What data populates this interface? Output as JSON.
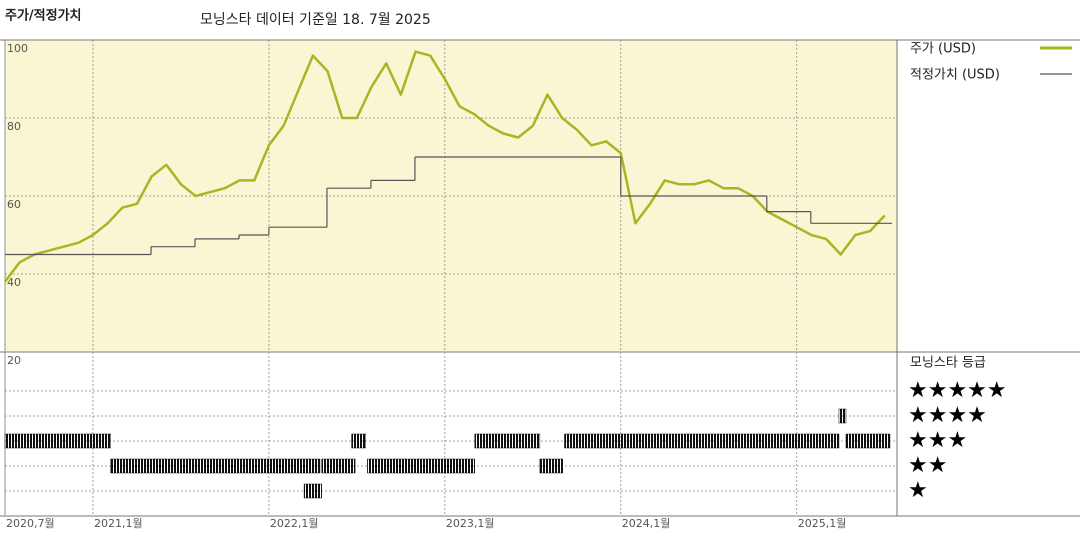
{
  "chart_data": {
    "type": "line",
    "title": "주가/적정가치",
    "subtitle": "모닝스타 데이터 기준일 18. 7월 2025",
    "x": [
      2020.5,
      2020.5833,
      2020.6667,
      2020.75,
      2020.8333,
      2020.9167,
      2021,
      2021.0833,
      2021.1667,
      2021.25,
      2021.3333,
      2021.4167,
      2021.5,
      2021.5833,
      2021.6667,
      2021.75,
      2021.8333,
      2021.9167,
      2022,
      2022.0833,
      2022.1667,
      2022.25,
      2022.3333,
      2022.4167,
      2022.5,
      2022.5833,
      2022.6667,
      2022.75,
      2022.8333,
      2022.9167,
      2023,
      2023.0833,
      2023.1667,
      2023.25,
      2023.3333,
      2023.4167,
      2023.5,
      2023.5833,
      2023.6667,
      2023.75,
      2023.8333,
      2023.9167,
      2024,
      2024.0833,
      2024.1667,
      2024.25,
      2024.3333,
      2024.4167,
      2024.5,
      2024.5833,
      2024.6667,
      2024.75,
      2024.8333,
      2024.9167,
      2025,
      2025.0833,
      2025.1667,
      2025.25,
      2025.3333,
      2025.4167,
      2025.5
    ],
    "xlim": [
      2020.5,
      2025.57
    ],
    "xticks": [
      {
        "value": 2020.5,
        "label": "2020,7월"
      },
      {
        "value": 2021,
        "label": "2021,1월"
      },
      {
        "value": 2022,
        "label": "2022,1월"
      },
      {
        "value": 2023,
        "label": "2023,1월"
      },
      {
        "value": 2024,
        "label": "2024,1월"
      },
      {
        "value": 2025,
        "label": "2025,1월"
      }
    ],
    "ylim": [
      20,
      100
    ],
    "yticks": [
      20,
      40,
      60,
      80,
      100
    ],
    "grid": true,
    "legend": "right",
    "series": [
      {
        "name": "주가 (USD)",
        "color": "#a9b526",
        "values": [
          38,
          43,
          45,
          46,
          47,
          48,
          50,
          53,
          57,
          58,
          65,
          68,
          63,
          60,
          61,
          62,
          64,
          64,
          73,
          78,
          87,
          96,
          92,
          80,
          80,
          88,
          94,
          86,
          97,
          96,
          90,
          83,
          81,
          78,
          76,
          75,
          78,
          86,
          80,
          77,
          73,
          74,
          71,
          53,
          58,
          64,
          63,
          63,
          64,
          62,
          62,
          60,
          56,
          54,
          52,
          50,
          49,
          45,
          50,
          51,
          55
        ]
      },
      {
        "name": "적정가치 (USD)",
        "color": "#555555",
        "step": true,
        "x": [
          2020.5,
          2021.33,
          2021.58,
          2021.83,
          2022.0,
          2022.33,
          2022.58,
          2022.83,
          2024.0,
          2024.83,
          2025.08
        ],
        "values": [
          45,
          47,
          49,
          50,
          52,
          62,
          64,
          70,
          60,
          56,
          53
        ]
      }
    ],
    "rating": {
      "title": "모닝스타 등급",
      "color": "#111111",
      "ticks": [
        {
          "value": 5,
          "label": "★★★★★"
        },
        {
          "value": 4,
          "label": "★★★★"
        },
        {
          "value": 3,
          "label": "★★★"
        },
        {
          "value": 2,
          "label": "★★"
        },
        {
          "value": 1,
          "label": "★"
        }
      ],
      "x": [
        2020.5,
        2021.1,
        2022.2,
        2022.3,
        2022.47,
        2022.56,
        2023.17,
        2023.54,
        2023.68,
        2025.24,
        2025.28
      ],
      "x_end": [
        2021.1,
        2022.29,
        2022.3,
        2022.49,
        2022.55,
        2023.17,
        2023.54,
        2023.67,
        2025.24,
        2025.28,
        2025.53
      ],
      "values": [
        3,
        2,
        1,
        2,
        3,
        2,
        3,
        2,
        3,
        4,
        3
      ]
    }
  }
}
